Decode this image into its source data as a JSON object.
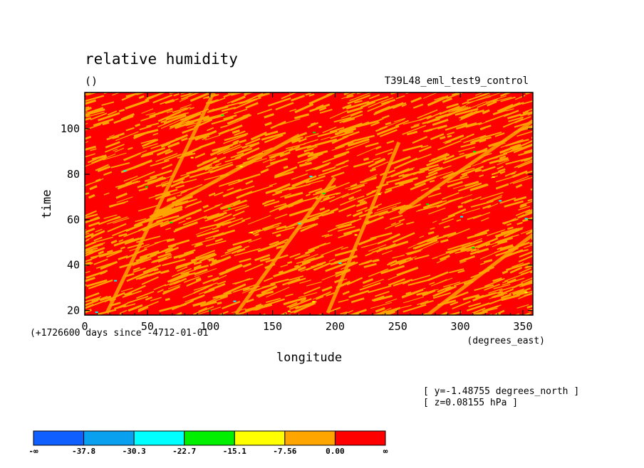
{
  "chart_data": {
    "type": "heatmap",
    "title": "relative humidity",
    "units": "()",
    "dataset": "T39L48_eml_test9_control",
    "xlabel": "longitude",
    "xunits": "(degrees_east)",
    "ylabel": "time",
    "time_note": "(+1726600 days since -4712-01-01",
    "xlim": [
      0,
      358
    ],
    "ylim": [
      18,
      116
    ],
    "x_ticks": [
      0,
      50,
      100,
      150,
      200,
      250,
      300,
      350
    ],
    "y_ticks": [
      20,
      40,
      60,
      80,
      100
    ],
    "context": [
      "[ y=-1.48755 degrees_north ]",
      "[ z=0.08155 hPa ]"
    ],
    "colorbar": {
      "levels": [
        "-∞",
        "-37.8",
        "-30.3",
        "-22.7",
        "-15.1",
        "-7.56",
        "0.00",
        "∞"
      ],
      "colors": [
        "#0f5fff",
        "#0aa0f0",
        "#00ffff",
        "#00f000",
        "#ffff00",
        "#ffa500",
        "#ff0000"
      ]
    },
    "background_color": "#ff0000",
    "dominant_colors": [
      "#ff0000",
      "#ffa500"
    ]
  }
}
